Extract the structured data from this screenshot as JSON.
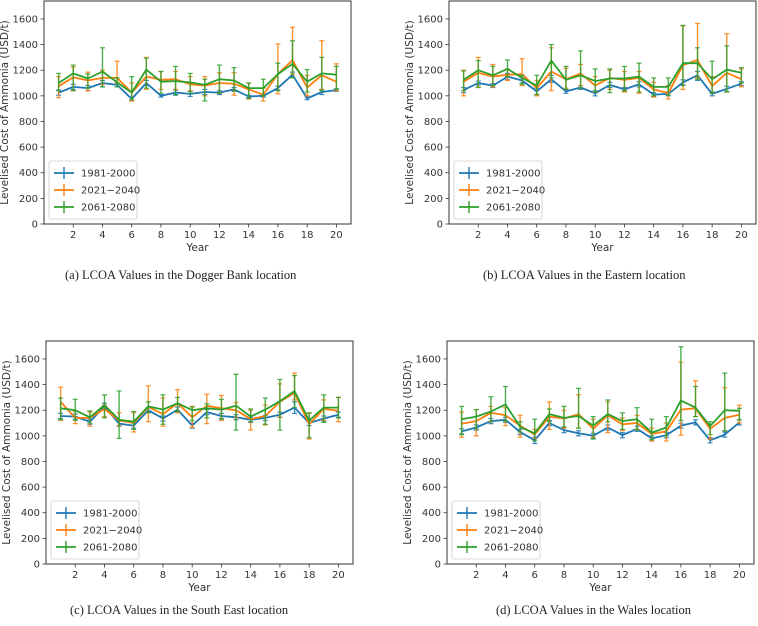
{
  "chart_data": [
    {
      "id": "a",
      "type": "line",
      "title": "",
      "caption": "(a)  LCOA Values in the Dogger Bank location",
      "xlabel": "Year",
      "ylabel": "Levelised Cost of Ammonia (USD/t)",
      "xlim": [
        0,
        21
      ],
      "ylim": [
        0,
        1740
      ],
      "xticks": [
        2,
        4,
        6,
        8,
        10,
        12,
        14,
        16,
        18,
        20
      ],
      "yticks": [
        0,
        200,
        400,
        600,
        800,
        1000,
        1200,
        1400,
        1600
      ],
      "legend_position": "lower-left",
      "x": [
        1,
        2,
        3,
        4,
        5,
        6,
        7,
        8,
        9,
        10,
        11,
        12,
        13,
        14,
        15,
        16,
        17,
        18,
        19,
        20
      ],
      "series": [
        {
          "name": "1981-2000",
          "color": "#1f77b4",
          "values": [
            1025,
            1070,
            1060,
            1100,
            1085,
            975,
            1100,
            1000,
            1025,
            1015,
            1030,
            1025,
            1050,
            995,
            1000,
            1060,
            1165,
            980,
            1030,
            1045
          ],
          "err_low": [
            1005,
            1050,
            1040,
            1070,
            1070,
            960,
            1080,
            990,
            1005,
            995,
            1010,
            1010,
            1035,
            985,
            990,
            1045,
            1145,
            970,
            1010,
            1035
          ],
          "err_high": [
            1045,
            1090,
            1080,
            1120,
            1100,
            990,
            1120,
            1010,
            1045,
            1035,
            1050,
            1040,
            1065,
            1005,
            1010,
            1075,
            1185,
            990,
            1050,
            1055
          ]
        },
        {
          "name": "2021−2040",
          "color": "#ff7f0e",
          "values": [
            1075,
            1145,
            1120,
            1140,
            1140,
            1025,
            1150,
            1125,
            1130,
            1090,
            1080,
            1100,
            1095,
            1050,
            1010,
            1170,
            1280,
            1065,
            1160,
            1110
          ],
          "err_low": [
            985,
            1040,
            1040,
            1090,
            1100,
            960,
            1050,
            1050,
            1050,
            1040,
            1000,
            1020,
            1005,
            975,
            960,
            1015,
            1170,
            1000,
            1050,
            1040
          ],
          "err_high": [
            1150,
            1225,
            1185,
            1200,
            1270,
            1100,
            1300,
            1190,
            1190,
            1150,
            1150,
            1180,
            1180,
            1100,
            1060,
            1405,
            1535,
            1160,
            1430,
            1250
          ]
        },
        {
          "name": "2061-2080",
          "color": "#2ca02c",
          "values": [
            1100,
            1175,
            1135,
            1190,
            1105,
            1025,
            1205,
            1110,
            1115,
            1105,
            1085,
            1130,
            1120,
            1060,
            1060,
            1170,
            1250,
            1110,
            1175,
            1165
          ],
          "err_low": [
            1040,
            1040,
            1060,
            1070,
            1070,
            970,
            1060,
            1020,
            1010,
            1020,
            960,
            1020,
            1040,
            980,
            1000,
            1040,
            1140,
            1030,
            1040,
            1050
          ],
          "err_high": [
            1175,
            1240,
            1170,
            1375,
            1140,
            1150,
            1295,
            1190,
            1230,
            1175,
            1130,
            1240,
            1220,
            1100,
            1130,
            1255,
            1430,
            1205,
            1300,
            1230
          ]
        }
      ]
    },
    {
      "id": "b",
      "type": "line",
      "title": "",
      "caption": "(b)  LCOA Values in the Eastern location",
      "xlabel": "Year",
      "ylabel": "Levelised Cost of Ammonia (USD/t)",
      "xlim": [
        0,
        21
      ],
      "ylim": [
        0,
        1740
      ],
      "xticks": [
        2,
        4,
        6,
        8,
        10,
        12,
        14,
        16,
        18,
        20
      ],
      "yticks": [
        0,
        200,
        400,
        600,
        800,
        1000,
        1200,
        1400,
        1600
      ],
      "legend_position": "lower-left",
      "x": [
        1,
        2,
        3,
        4,
        5,
        6,
        7,
        8,
        9,
        10,
        11,
        12,
        13,
        14,
        15,
        16,
        17,
        18,
        19,
        20
      ],
      "series": [
        {
          "name": "1981-2000",
          "color": "#1f77b4",
          "values": [
            1045,
            1100,
            1080,
            1150,
            1120,
            1035,
            1130,
            1035,
            1065,
            1020,
            1085,
            1050,
            1090,
            1010,
            1015,
            1105,
            1160,
            1015,
            1055,
            1095
          ],
          "err_low": [
            1025,
            1085,
            1065,
            1125,
            1100,
            1010,
            1105,
            1020,
            1050,
            1000,
            1065,
            1035,
            1070,
            995,
            1000,
            1085,
            1120,
            1000,
            1035,
            1080
          ],
          "err_high": [
            1065,
            1115,
            1095,
            1175,
            1140,
            1060,
            1160,
            1050,
            1080,
            1040,
            1105,
            1065,
            1110,
            1025,
            1030,
            1125,
            1190,
            1030,
            1075,
            1110
          ]
        },
        {
          "name": "2021−2040",
          "color": "#ff7f0e",
          "values": [
            1110,
            1180,
            1150,
            1165,
            1170,
            1060,
            1190,
            1130,
            1175,
            1080,
            1140,
            1125,
            1140,
            1050,
            1020,
            1240,
            1280,
            1075,
            1180,
            1130
          ],
          "err_low": [
            1000,
            1070,
            1070,
            1120,
            1080,
            1000,
            1040,
            1060,
            1080,
            1030,
            1050,
            1030,
            1020,
            990,
            975,
            1050,
            1140,
            1020,
            1030,
            1070
          ],
          "err_high": [
            1200,
            1300,
            1245,
            1210,
            1290,
            1120,
            1375,
            1215,
            1245,
            1150,
            1200,
            1190,
            1190,
            1105,
            1080,
            1545,
            1565,
            1150,
            1485,
            1210
          ]
        },
        {
          "name": "2061-2080",
          "color": "#2ca02c",
          "values": [
            1125,
            1200,
            1160,
            1210,
            1140,
            1080,
            1275,
            1125,
            1160,
            1115,
            1135,
            1135,
            1150,
            1070,
            1070,
            1255,
            1255,
            1130,
            1205,
            1180
          ],
          "err_low": [
            1040,
            1065,
            1080,
            1150,
            1090,
            1010,
            1140,
            1050,
            1060,
            1030,
            1025,
            1040,
            1030,
            1000,
            1005,
            1080,
            1130,
            1020,
            1030,
            1100
          ],
          "err_high": [
            1195,
            1275,
            1230,
            1280,
            1160,
            1160,
            1400,
            1230,
            1350,
            1210,
            1210,
            1230,
            1255,
            1140,
            1140,
            1550,
            1375,
            1270,
            1390,
            1220
          ]
        }
      ]
    },
    {
      "id": "c",
      "type": "line",
      "title": "",
      "caption": "(c)  LCOA Values in the South East location",
      "xlabel": "Year",
      "ylabel": "Levelised Cost of Ammonia (USD/t)",
      "xlim": [
        0,
        21
      ],
      "ylim": [
        0,
        1740
      ],
      "xticks": [
        2,
        4,
        6,
        8,
        10,
        12,
        14,
        16,
        18,
        20
      ],
      "yticks": [
        0,
        200,
        400,
        600,
        800,
        1000,
        1200,
        1400,
        1600
      ],
      "legend_position": "lower-left",
      "x": [
        1,
        2,
        3,
        4,
        5,
        6,
        7,
        8,
        9,
        10,
        11,
        12,
        13,
        14,
        15,
        16,
        17,
        18,
        19,
        20
      ],
      "series": [
        {
          "name": "1981-2000",
          "color": "#1f77b4",
          "values": [
            1155,
            1150,
            1110,
            1230,
            1095,
            1080,
            1200,
            1135,
            1205,
            1080,
            1185,
            1155,
            1145,
            1125,
            1140,
            1165,
            1220,
            1100,
            1135,
            1165
          ],
          "err_low": [
            1135,
            1130,
            1090,
            1205,
            1075,
            1060,
            1180,
            1115,
            1185,
            1060,
            1165,
            1135,
            1125,
            1105,
            1120,
            1145,
            1175,
            1080,
            1115,
            1145
          ],
          "err_high": [
            1175,
            1170,
            1130,
            1255,
            1115,
            1100,
            1220,
            1155,
            1225,
            1100,
            1205,
            1175,
            1165,
            1145,
            1160,
            1185,
            1265,
            1120,
            1155,
            1185
          ]
        },
        {
          "name": "2021−2040",
          "color": "#ff7f0e",
          "values": [
            1265,
            1140,
            1140,
            1210,
            1120,
            1100,
            1225,
            1170,
            1255,
            1145,
            1235,
            1215,
            1200,
            1130,
            1155,
            1265,
            1335,
            1090,
            1210,
            1195
          ],
          "err_low": [
            1120,
            1095,
            1075,
            1150,
            1080,
            1030,
            1110,
            1075,
            1180,
            1065,
            1095,
            1120,
            1140,
            1045,
            1085,
            1145,
            1280,
            975,
            1120,
            1110
          ],
          "err_high": [
            1380,
            1190,
            1185,
            1240,
            1180,
            1180,
            1390,
            1295,
            1360,
            1230,
            1325,
            1315,
            1260,
            1200,
            1240,
            1405,
            1490,
            1175,
            1280,
            1300
          ]
        },
        {
          "name": "2061-2080",
          "color": "#2ca02c",
          "values": [
            1215,
            1200,
            1145,
            1240,
            1125,
            1110,
            1230,
            1205,
            1255,
            1200,
            1215,
            1205,
            1235,
            1150,
            1205,
            1270,
            1350,
            1120,
            1220,
            1220
          ],
          "err_low": [
            1125,
            1120,
            1100,
            1140,
            980,
            1050,
            1180,
            1090,
            1190,
            1120,
            1140,
            1130,
            1045,
            1110,
            1090,
            1045,
            1220,
            985,
            1105,
            1140
          ],
          "err_high": [
            1295,
            1285,
            1195,
            1320,
            1350,
            1190,
            1265,
            1320,
            1300,
            1225,
            1250,
            1285,
            1480,
            1210,
            1295,
            1440,
            1470,
            1180,
            1320,
            1300
          ]
        }
      ]
    },
    {
      "id": "d",
      "type": "line",
      "title": "",
      "caption": "(d)  LCOA Values in the Wales location",
      "xlabel": "Year",
      "ylabel": "Levelised Cost of Ammonia (USD/t)",
      "xlim": [
        0,
        21
      ],
      "ylim": [
        0,
        1740
      ],
      "xticks": [
        2,
        4,
        6,
        8,
        10,
        12,
        14,
        16,
        18,
        20
      ],
      "yticks": [
        0,
        200,
        400,
        600,
        800,
        1000,
        1200,
        1400,
        1600
      ],
      "legend_position": "lower-left",
      "x": [
        1,
        2,
        3,
        4,
        5,
        6,
        7,
        8,
        9,
        10,
        11,
        12,
        13,
        14,
        15,
        16,
        17,
        18,
        19,
        20
      ],
      "series": [
        {
          "name": "1981-2000",
          "color": "#1f77b4",
          "values": [
            1035,
            1065,
            1115,
            1125,
            1030,
            965,
            1100,
            1045,
            1020,
            1000,
            1065,
            1005,
            1055,
            980,
            1005,
            1080,
            1105,
            965,
            1010,
            1105
          ],
          "err_low": [
            1015,
            1045,
            1095,
            1105,
            1010,
            940,
            1080,
            1025,
            1000,
            980,
            1045,
            985,
            1035,
            960,
            985,
            1060,
            1085,
            945,
            990,
            1085
          ],
          "err_high": [
            1055,
            1085,
            1135,
            1145,
            1050,
            990,
            1120,
            1065,
            1040,
            1020,
            1085,
            1025,
            1075,
            1000,
            1025,
            1100,
            1125,
            985,
            1030,
            1125
          ]
        },
        {
          "name": "2021−2040",
          "color": "#ff7f0e",
          "values": [
            1095,
            1115,
            1180,
            1160,
            1080,
            1010,
            1150,
            1135,
            1170,
            1055,
            1160,
            1090,
            1100,
            1015,
            1035,
            1205,
            1215,
            1055,
            1140,
            1165
          ],
          "err_low": [
            990,
            1000,
            1110,
            1080,
            990,
            980,
            1050,
            1060,
            1060,
            990,
            1025,
            1040,
            1050,
            960,
            960,
            1005,
            1150,
            975,
            1040,
            1100
          ],
          "err_high": [
            1185,
            1205,
            1230,
            1220,
            1160,
            1050,
            1265,
            1200,
            1320,
            1130,
            1265,
            1140,
            1160,
            1060,
            1100,
            1575,
            1430,
            1090,
            1375,
            1240
          ]
        },
        {
          "name": "2061-2080",
          "color": "#2ca02c",
          "values": [
            1130,
            1150,
            1190,
            1245,
            1070,
            1020,
            1170,
            1140,
            1155,
            1080,
            1170,
            1115,
            1130,
            1025,
            1065,
            1275,
            1220,
            1075,
            1200,
            1195
          ],
          "err_low": [
            1010,
            1055,
            1110,
            1115,
            1030,
            960,
            1110,
            1070,
            1060,
            975,
            1110,
            1050,
            1045,
            970,
            1000,
            1120,
            1150,
            1010,
            1040,
            1125
          ],
          "err_high": [
            1230,
            1205,
            1305,
            1385,
            1110,
            1130,
            1210,
            1230,
            1370,
            1150,
            1280,
            1180,
            1220,
            1130,
            1150,
            1695,
            1385,
            1110,
            1490,
            1215
          ]
        }
      ]
    }
  ]
}
